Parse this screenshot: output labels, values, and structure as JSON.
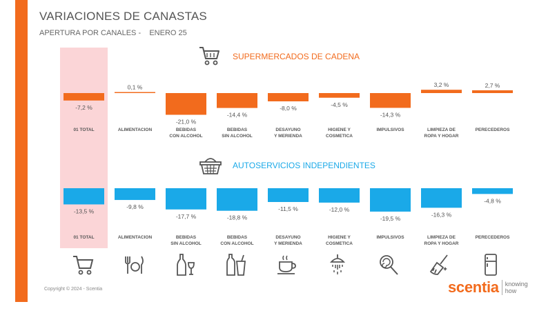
{
  "header": {
    "title": "VARIACIONES DE CANASTAS",
    "subtitle": "APERTURA POR CANALES -    ENERO 25"
  },
  "footer": {
    "copyright": "Copyright © 2024 - Scentia",
    "logo_word": "scentia",
    "logo_tag": "knowing how"
  },
  "colors": {
    "accent": "#f26b1d",
    "supermarket_bar": "#f26b1d",
    "independent_bar": "#1aa9e8",
    "highlight": "#fbd5d7"
  },
  "icons": [
    "cart-icon",
    "cutlery-icon",
    "bottle-glass-icon",
    "soda-cup-icon",
    "coffee-cup-icon",
    "shower-icon",
    "lollipop-icon",
    "broom-icon",
    "fridge-icon"
  ],
  "chart_data": [
    {
      "type": "bar",
      "title": "SUPERMERCADOS DE CADENA",
      "icon": "shopping-cart-icon",
      "categories": [
        "01 TOTAL",
        "ALIMENTACION",
        "BEBIDAS CON ALCOHOL",
        "BEBIDAS SIN ALCOHOL",
        "DESAYUNO Y MERIENDA",
        "HIGIENE Y COSMETICA",
        "IMPULSIVOS",
        "LIMPIEZA DE ROPA Y HOGAR",
        "PERECEDEROS"
      ],
      "values": [
        -7.2,
        0.1,
        -21.0,
        -14.4,
        -8.0,
        -4.5,
        -14.3,
        3.2,
        2.7
      ],
      "labels": [
        "-7,2 %",
        "0,1 %",
        "-21,0 %",
        "-14,4 %",
        "-8,0 %",
        "-4,5 %",
        "-14,3 %",
        "3,2 %",
        "2,7 %"
      ],
      "color": "#f26b1d"
    },
    {
      "type": "bar",
      "title": "AUTOSERVICIOS INDEPENDIENTES",
      "icon": "basket-icon",
      "categories": [
        "01 TOTAL",
        "ALIMENTACION",
        "BEBIDAS SIN ALCOHOL",
        "BEBIDAS CON ALCOHOL",
        "DESAYUNO Y MERIENDA",
        "HIGIENE Y COSMETICA",
        "IMPULSIVOS",
        "LIMPIEZA DE ROPA Y HOGAR",
        "PERECEDEROS"
      ],
      "values": [
        -13.5,
        -9.8,
        -17.7,
        -18.8,
        -11.5,
        -12.0,
        -19.5,
        -16.3,
        -4.8
      ],
      "labels": [
        "-13,5 %",
        "-9,8 %",
        "-17,7 %",
        "-18,8 %",
        "-11,5 %",
        "-12,0 %",
        "-19,5 %",
        "-16,3 %",
        "-4,8 %"
      ],
      "color": "#1aa9e8"
    }
  ]
}
